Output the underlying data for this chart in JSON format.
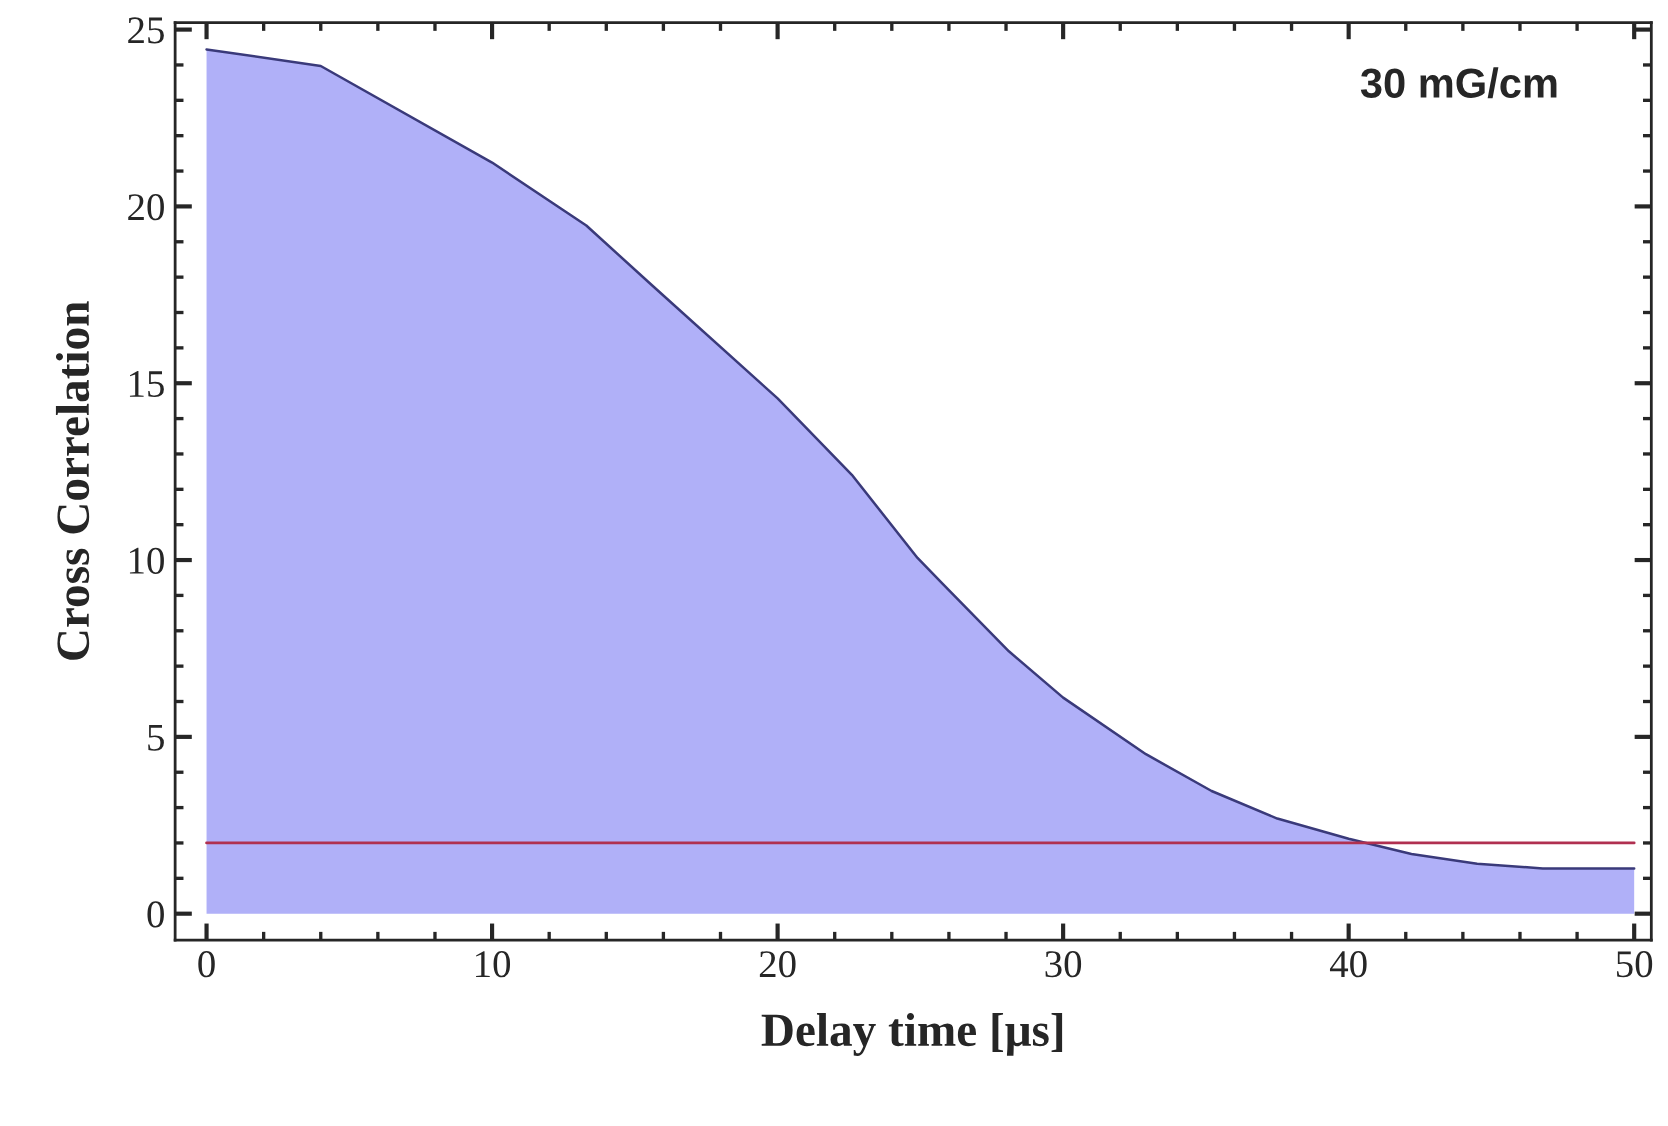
{
  "chart_data": {
    "type": "area",
    "xlabel": "Delay time [μs]",
    "ylabel": "Cross Correlation",
    "annotations": [
      "30 mG/cm"
    ],
    "series": [
      {
        "color": "#b0b0f8",
        "x": [
          0,
          4,
          10,
          13.3,
          15.6,
          20,
          22.6,
          24.9,
          25.8,
          28.1,
          30,
          32.9,
          35.2,
          37.5,
          40,
          42.2,
          44.5,
          46.8,
          50
        ],
        "values": [
          24.44,
          23.97,
          21.24,
          19.46,
          17.77,
          14.57,
          12.41,
          10.06,
          9.31,
          7.42,
          6.11,
          4.51,
          3.47,
          2.69,
          2.12,
          1.69,
          1.41,
          1.28,
          1.28
        ]
      }
    ],
    "ref_lines": [
      {
        "axis": "y",
        "value": 2,
        "color": "#b03050"
      }
    ],
    "xlim": [
      -1.1,
      50.6
    ],
    "ylim": [
      -0.75,
      25.2
    ],
    "xticks": [
      0,
      10,
      20,
      30,
      40,
      50
    ],
    "yticks": [
      0,
      5,
      10,
      15,
      20,
      25
    ],
    "grid": false,
    "legend": false
  }
}
